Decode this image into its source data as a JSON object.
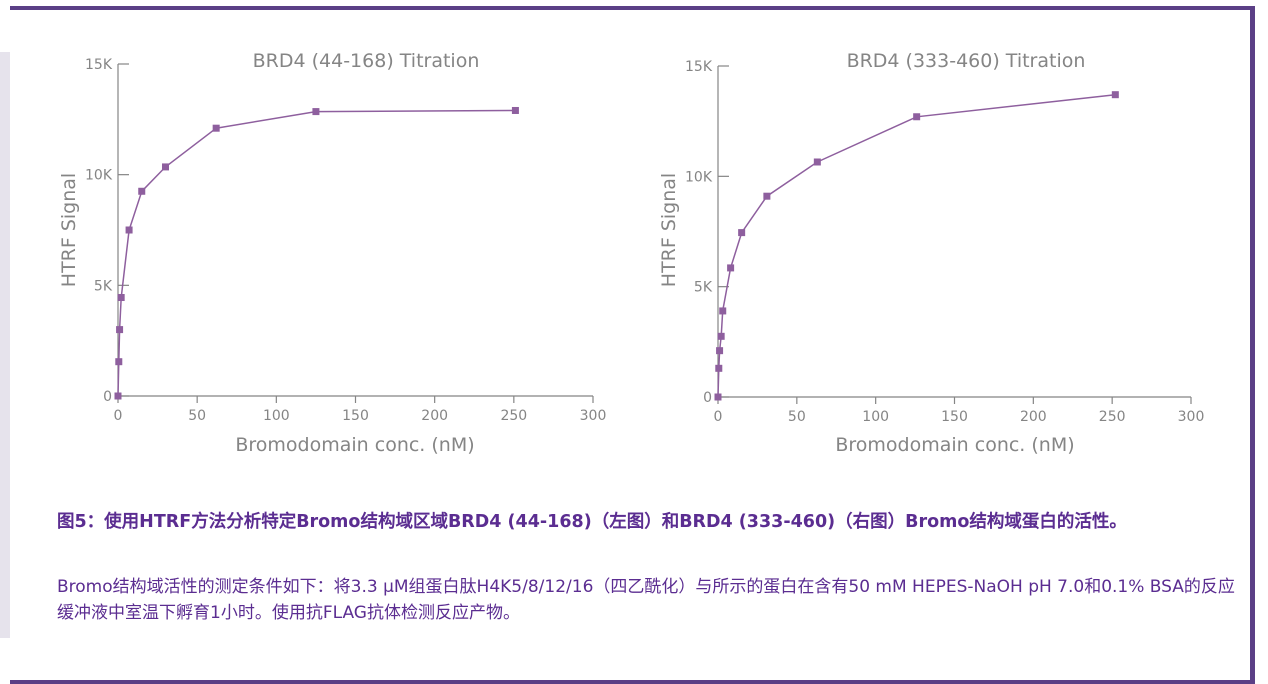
{
  "chart_data": [
    {
      "type": "line",
      "title": "BRD4 (44-168) Titration",
      "xlabel": "Bromodomain conc. (nM)",
      "ylabel": "HTRF Signal",
      "xlim": [
        0,
        300
      ],
      "ylim": [
        0,
        15000
      ],
      "x_ticks": [
        "0",
        "50",
        "100",
        "150",
        "200",
        "250",
        "300"
      ],
      "y_ticks": [
        "0",
        "5K",
        "10K",
        "15K"
      ],
      "grid": false,
      "series": [
        {
          "color": "#8e5f9e",
          "marker": "square",
          "x": [
            0,
            0.5,
            1,
            2,
            7,
            15,
            30,
            62,
            125,
            251
          ],
          "y": [
            0,
            1550,
            3000,
            4450,
            7500,
            9250,
            10350,
            12100,
            12850,
            12900
          ]
        }
      ]
    },
    {
      "type": "line",
      "title": "BRD4 (333-460) Titration",
      "xlabel": "Bromodomain conc. (nM)",
      "ylabel": "HTRF Signal",
      "xlim": [
        0,
        300
      ],
      "ylim": [
        0,
        15000
      ],
      "x_ticks": [
        "0",
        "50",
        "100",
        "150",
        "200",
        "250",
        "300"
      ],
      "y_ticks": [
        "0",
        "5K",
        "10K",
        "15K"
      ],
      "grid": false,
      "series": [
        {
          "color": "#8e5f9e",
          "marker": "square",
          "x": [
            0,
            0.5,
            1,
            2,
            3,
            8,
            15,
            31,
            63,
            126,
            252
          ],
          "y": [
            0,
            1300,
            2100,
            2750,
            3900,
            5850,
            7450,
            9100,
            10650,
            12700,
            13700
          ]
        }
      ]
    }
  ],
  "caption": {
    "title": "图5：使用HTRF方法分析特定Bromo结构域区域BRD4 (44-168)（左图）和BRD4 (333-460)（右图）Bromo结构域蛋白的活性。",
    "body": "Bromo结构域活性的测定条件如下：将3.3 μM组蛋白肽H4K5/8/12/16（四乙酰化）与所示的蛋白在含有50 mM HEPES-NaOH pH 7.0和0.1% BSA的反应缓冲液中室温下孵育1小时。使用抗FLAG抗体检测反应产物。"
  },
  "colors": {
    "frame": "#5b3f86",
    "caption_text": "#5b2d91",
    "series": "#8e5f9e",
    "axis": "#858585"
  }
}
